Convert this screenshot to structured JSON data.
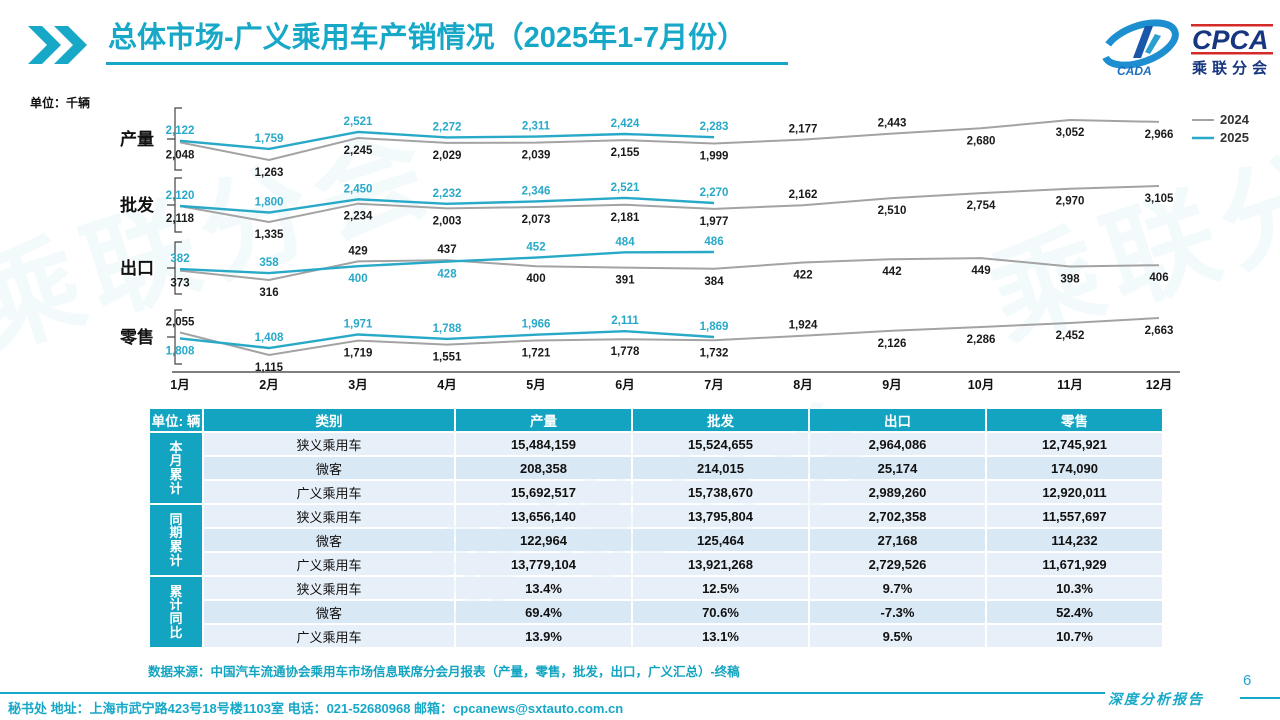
{
  "accent_color": "#17a8c8",
  "header": {
    "title": "总体市场-广义乘用车产销情况（2025年1-7月份）",
    "logo": {
      "cpca_text": "CPCA",
      "sub_text": "乘联分会",
      "cada_text": "CADA"
    }
  },
  "chart_data": {
    "type": "line",
    "unit_label": "单位：千辆",
    "x_categories": [
      "1月",
      "2月",
      "3月",
      "4月",
      "5月",
      "6月",
      "7月",
      "8月",
      "9月",
      "10月",
      "11月",
      "12月"
    ],
    "legend": [
      {
        "name": "2024",
        "color": "#a3a3a3"
      },
      {
        "name": "2025",
        "color": "#29a9c8"
      }
    ],
    "legend_position": "top-right",
    "grid": false,
    "panels": [
      {
        "name": "产量",
        "series": [
          {
            "name": "2024",
            "values": [
              2048,
              1263,
              2245,
              2029,
              2039,
              2155,
              1999,
              2177,
              2443,
              2680,
              3052,
              2966
            ]
          },
          {
            "name": "2025",
            "values": [
              2122,
              1759,
              2521,
              2272,
              2311,
              2424,
              2283
            ]
          }
        ]
      },
      {
        "name": "批发",
        "series": [
          {
            "name": "2024",
            "values": [
              2118,
              1335,
              2234,
              2003,
              2073,
              2181,
              1977,
              2162,
              2510,
              2754,
              2970,
              3105
            ]
          },
          {
            "name": "2025",
            "values": [
              2120,
              1800,
              2450,
              2232,
              2346,
              2521,
              2270
            ]
          }
        ]
      },
      {
        "name": "出口",
        "series": [
          {
            "name": "2024",
            "values": [
              373,
              316,
              429,
              437,
              400,
              391,
              384,
              422,
              442,
              449,
              398,
              406
            ]
          },
          {
            "name": "2025",
            "values": [
              382,
              358,
              400,
              428,
              452,
              484,
              486
            ]
          }
        ]
      },
      {
        "name": "零售",
        "series": [
          {
            "name": "2024",
            "values": [
              2055,
              1115,
              1719,
              1551,
              1721,
              1778,
              1732,
              1924,
              2126,
              2286,
              2452,
              2663
            ]
          },
          {
            "name": "2025",
            "values": [
              1808,
              1408,
              1971,
              1788,
              1966,
              2111,
              1869
            ]
          }
        ]
      }
    ]
  },
  "table": {
    "unit_header": "单位: 辆",
    "columns": [
      "类别",
      "产量",
      "批发",
      "出口",
      "零售"
    ],
    "groups": [
      {
        "label": "本月累计",
        "rows": [
          {
            "category": "狭义乘用车",
            "values": [
              "15,484,159",
              "15,524,655",
              "2,964,086",
              "12,745,921"
            ]
          },
          {
            "category": "微客",
            "values": [
              "208,358",
              "214,015",
              "25,174",
              "174,090"
            ]
          },
          {
            "category": "广义乘用车",
            "values": [
              "15,692,517",
              "15,738,670",
              "2,989,260",
              "12,920,011"
            ]
          }
        ]
      },
      {
        "label": "同期累计",
        "rows": [
          {
            "category": "狭义乘用车",
            "values": [
              "13,656,140",
              "13,795,804",
              "2,702,358",
              "11,557,697"
            ]
          },
          {
            "category": "微客",
            "values": [
              "122,964",
              "125,464",
              "27,168",
              "114,232"
            ]
          },
          {
            "category": "广义乘用车",
            "values": [
              "13,779,104",
              "13,921,268",
              "2,729,526",
              "11,671,929"
            ]
          }
        ]
      },
      {
        "label": "累计同比",
        "rows": [
          {
            "category": "狭义乘用车",
            "values": [
              "13.4%",
              "12.5%",
              "9.7%",
              "10.3%"
            ]
          },
          {
            "category": "微客",
            "values": [
              "69.4%",
              "70.6%",
              "-7.3%",
              "52.4%"
            ]
          },
          {
            "category": "广义乘用车",
            "values": [
              "13.9%",
              "13.1%",
              "9.5%",
              "10.7%"
            ]
          }
        ]
      }
    ]
  },
  "footer": {
    "source": "数据来源：中国汽车流通协会乘用车市场信息联席分会月报表（产量，零售，批发，出口，广义汇总）-终稿",
    "secretariat": "秘书处  地址：上海市武宁路423号18号楼1103室  电话：021-52680968   邮箱：cpcanews@sxtauto.com.cn",
    "page_number": "6",
    "report_label": "深度分析报告"
  },
  "watermark_text": "乘联分会"
}
